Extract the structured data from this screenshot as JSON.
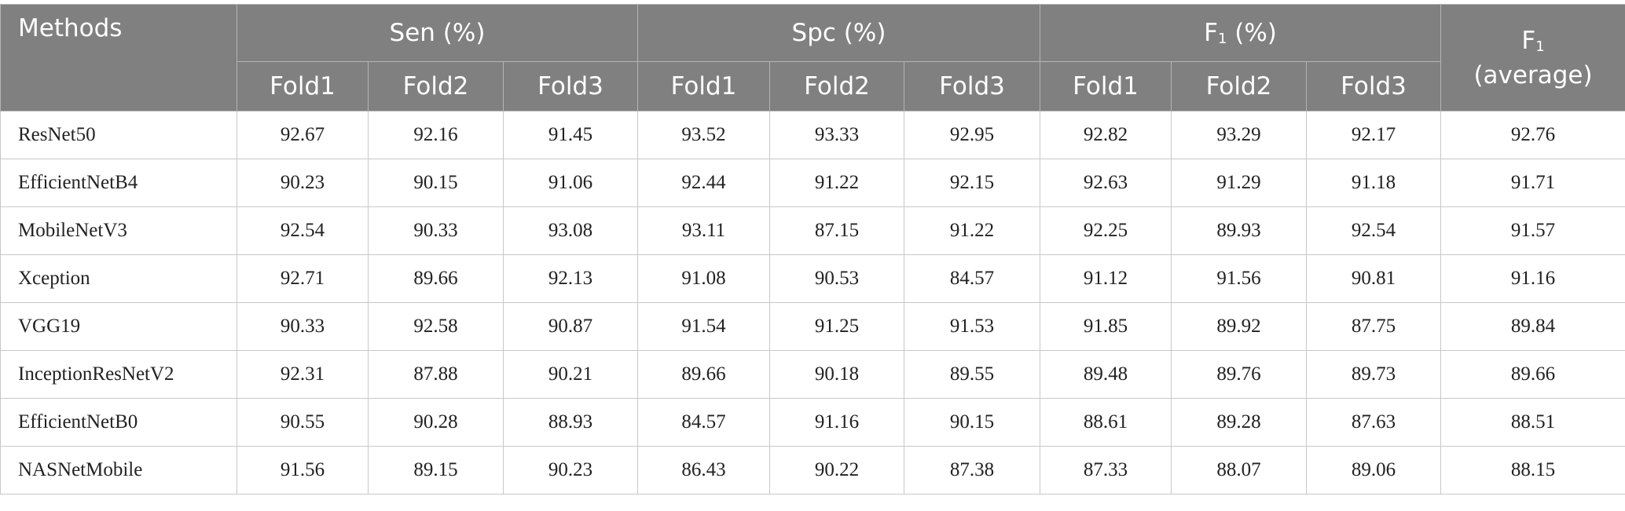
{
  "header": {
    "methods": "Methods",
    "groups": [
      {
        "label": {
          "base": "Sen (%)"
        },
        "folds": [
          "Fold1",
          "Fold2",
          "Fold3"
        ]
      },
      {
        "label": {
          "base": "Spc (%)"
        },
        "folds": [
          "Fold1",
          "Fold2",
          "Fold3"
        ]
      },
      {
        "label": {
          "base": "F",
          "sub": "1",
          "suffix": " (%)"
        },
        "folds": [
          "Fold1",
          "Fold2",
          "Fold3"
        ]
      }
    ],
    "average": {
      "base": "F",
      "sub": "1",
      "suffix": "(average)"
    }
  },
  "table": {
    "rows": [
      {
        "method": "ResNet50",
        "values": [
          92.67,
          92.16,
          91.45,
          93.52,
          93.33,
          92.95,
          92.82,
          93.29,
          92.17,
          92.76
        ]
      },
      {
        "method": "EfficientNetB4",
        "values": [
          90.23,
          90.15,
          91.06,
          92.44,
          91.22,
          92.15,
          92.63,
          91.29,
          91.18,
          91.71
        ]
      },
      {
        "method": "MobileNetV3",
        "values": [
          92.54,
          90.33,
          93.08,
          93.11,
          87.15,
          91.22,
          92.25,
          89.93,
          92.54,
          91.57
        ]
      },
      {
        "method": "Xception",
        "values": [
          92.71,
          89.66,
          92.13,
          91.08,
          90.53,
          84.57,
          91.12,
          91.56,
          90.81,
          91.16
        ]
      },
      {
        "method": "VGG19",
        "values": [
          90.33,
          92.58,
          90.87,
          91.54,
          91.25,
          91.53,
          91.85,
          89.92,
          87.75,
          89.84
        ]
      },
      {
        "method": "InceptionResNetV2",
        "values": [
          92.31,
          87.88,
          90.21,
          89.66,
          90.18,
          89.55,
          89.48,
          89.76,
          89.73,
          89.66
        ]
      },
      {
        "method": "EfficientNetB0",
        "values": [
          90.55,
          90.28,
          88.93,
          84.57,
          91.16,
          90.15,
          88.61,
          89.28,
          87.63,
          88.51
        ]
      },
      {
        "method": "NASNetMobile",
        "values": [
          91.56,
          89.15,
          90.23,
          86.43,
          90.22,
          87.38,
          87.33,
          88.07,
          89.06,
          88.15
        ]
      }
    ]
  }
}
